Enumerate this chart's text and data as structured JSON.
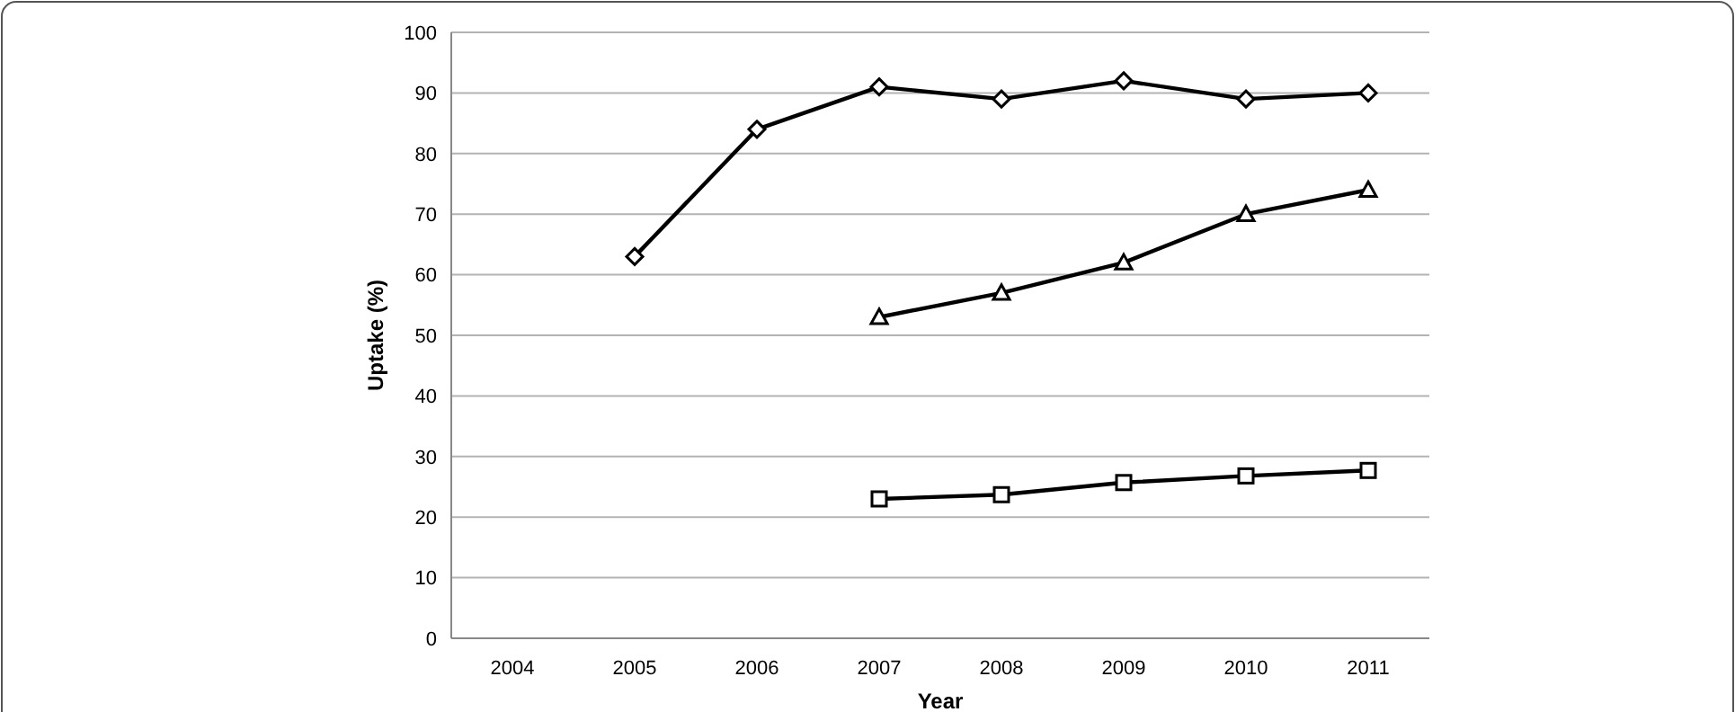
{
  "chart_data": {
    "type": "line",
    "xlabel": "Year",
    "ylabel": "Uptake (%)",
    "categories": [
      "2004",
      "2005",
      "2006",
      "2007",
      "2008",
      "2009",
      "2010",
      "2011"
    ],
    "series": [
      {
        "color": "#000000",
        "marker": "diamond",
        "values": [
          null,
          63,
          84,
          91,
          89,
          92,
          89,
          90
        ]
      },
      {
        "color": "#000000",
        "marker": "triangle",
        "values": [
          null,
          null,
          null,
          53,
          57,
          62,
          70,
          74
        ]
      },
      {
        "color": "#000000",
        "marker": "square",
        "values": [
          null,
          null,
          null,
          23,
          23.7,
          25.7,
          26.8,
          27.7
        ]
      }
    ],
    "ylim": [
      0,
      100
    ],
    "yticks": [
      0,
      10,
      20,
      30,
      40,
      50,
      60,
      70,
      80,
      90,
      100
    ],
    "grid": "y",
    "line_style": "solid"
  }
}
